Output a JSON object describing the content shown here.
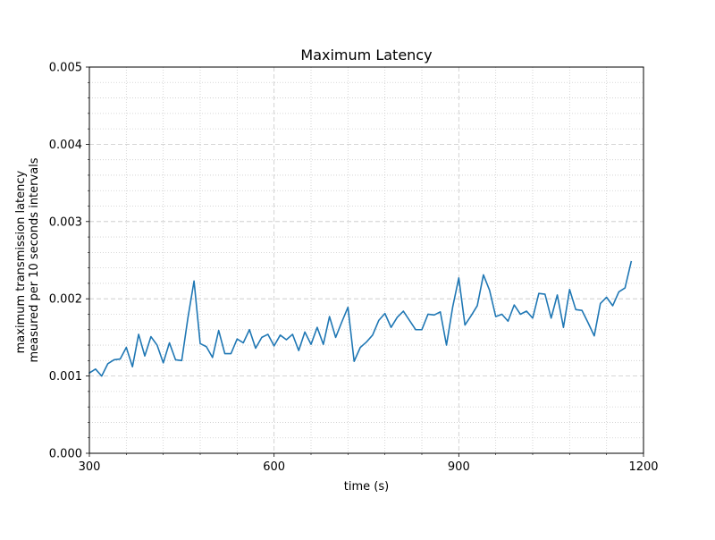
{
  "chart_data": {
    "type": "line",
    "title": "Maximum Latency",
    "xlabel": "time (s)",
    "ylabel_lines": [
      "maximum transmission latency",
      "measured per 10 seconds intervals"
    ],
    "xlim": [
      300,
      1200
    ],
    "ylim": [
      0,
      0.005
    ],
    "xticks": [
      300,
      600,
      900,
      1200
    ],
    "xtick_labels": [
      "300",
      "600",
      "900",
      "1200"
    ],
    "yticks": [
      0,
      0.001,
      0.002,
      0.003,
      0.004,
      0.005
    ],
    "ytick_labels": [
      "0.000",
      "0.001",
      "0.002",
      "0.003",
      "0.004",
      "0.005"
    ],
    "grid": true,
    "line_color": "#1f77b4",
    "series": [
      {
        "x": [
          300,
          310,
          320,
          330,
          340,
          350,
          360,
          370,
          380,
          390,
          400,
          410,
          420,
          430,
          440,
          450,
          460,
          470,
          480,
          490,
          500,
          510,
          520,
          530,
          540,
          550,
          560,
          570,
          580,
          590,
          600,
          610,
          620,
          630,
          640,
          650,
          660,
          670,
          680,
          690,
          700,
          710,
          720,
          730,
          740,
          750,
          760,
          770,
          780,
          790,
          800,
          810,
          820,
          830,
          840,
          850,
          860,
          870,
          880,
          890,
          900,
          910,
          920,
          930,
          940,
          950,
          960,
          970,
          980,
          990,
          1000,
          1010,
          1020,
          1030,
          1040,
          1050,
          1060,
          1070,
          1080,
          1090,
          1100,
          1110,
          1120,
          1130,
          1140,
          1150,
          1160,
          1170,
          1180
        ],
        "y": [
          0.00104,
          0.00109,
          0.001,
          0.00116,
          0.00121,
          0.00122,
          0.00137,
          0.00112,
          0.00154,
          0.00126,
          0.00151,
          0.0014,
          0.00117,
          0.00143,
          0.00121,
          0.0012,
          0.00175,
          0.00223,
          0.00142,
          0.00138,
          0.00124,
          0.00159,
          0.00129,
          0.00129,
          0.00148,
          0.00143,
          0.0016,
          0.00136,
          0.0015,
          0.00154,
          0.00139,
          0.00153,
          0.00147,
          0.00154,
          0.00133,
          0.00157,
          0.00141,
          0.00163,
          0.00141,
          0.00177,
          0.0015,
          0.0017,
          0.00189,
          0.00119,
          0.00137,
          0.00144,
          0.00153,
          0.00172,
          0.00181,
          0.00163,
          0.00176,
          0.00184,
          0.00172,
          0.0016,
          0.0016,
          0.0018,
          0.00179,
          0.00183,
          0.0014,
          0.00189,
          0.00227,
          0.00166,
          0.00178,
          0.00191,
          0.00231,
          0.00211,
          0.00177,
          0.0018,
          0.00171,
          0.00192,
          0.0018,
          0.00184,
          0.00175,
          0.00207,
          0.00206,
          0.00175,
          0.00205,
          0.00163,
          0.00212,
          0.00186,
          0.00185,
          0.00169,
          0.00152,
          0.00194,
          0.00202,
          0.00191,
          0.00209,
          0.00214,
          0.00248
        ]
      }
    ]
  }
}
